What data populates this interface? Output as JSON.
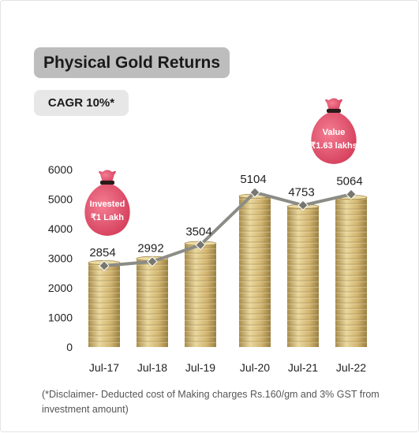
{
  "title": "Physical Gold Returns",
  "cagr": "CAGR 10%*",
  "disclaimer": "(*Disclaimer- Deducted cost of Making charges Rs.160/gm and 3% GST from investment amount)",
  "chart_data": {
    "type": "bar",
    "categories": [
      "Jul-17",
      "Jul-18",
      "Jul-19",
      "Jul-20",
      "Jul-21",
      "Jul-22"
    ],
    "series": [
      {
        "values": [
          2854,
          2992,
          3504,
          5104,
          4753,
          5064
        ]
      }
    ],
    "line_values": [
      2748,
      2891,
      3454,
      5227,
      4793,
      5165
    ],
    "data_labels": [
      "2854",
      "2992",
      "3504",
      "5104",
      "4753",
      "5064"
    ],
    "ylim": [
      0,
      6000
    ],
    "yticks": [
      0,
      1000,
      2000,
      3000,
      4000,
      5000,
      6000
    ],
    "grid": false,
    "legend": "none",
    "bar_style": "stacked gold coins",
    "annotations": [
      {
        "icon": "money-bag-icon",
        "line1": "Invested",
        "line2": "₹1 Lakh",
        "category": "Jul-17"
      },
      {
        "icon": "money-bag-icon",
        "line1": "Value",
        "line2": "₹1.63 lakhs",
        "category": "Jul-22"
      }
    ],
    "colors": {
      "line": "#8c8c86",
      "coin": "#d2b878",
      "bag": "#e0506a"
    }
  }
}
